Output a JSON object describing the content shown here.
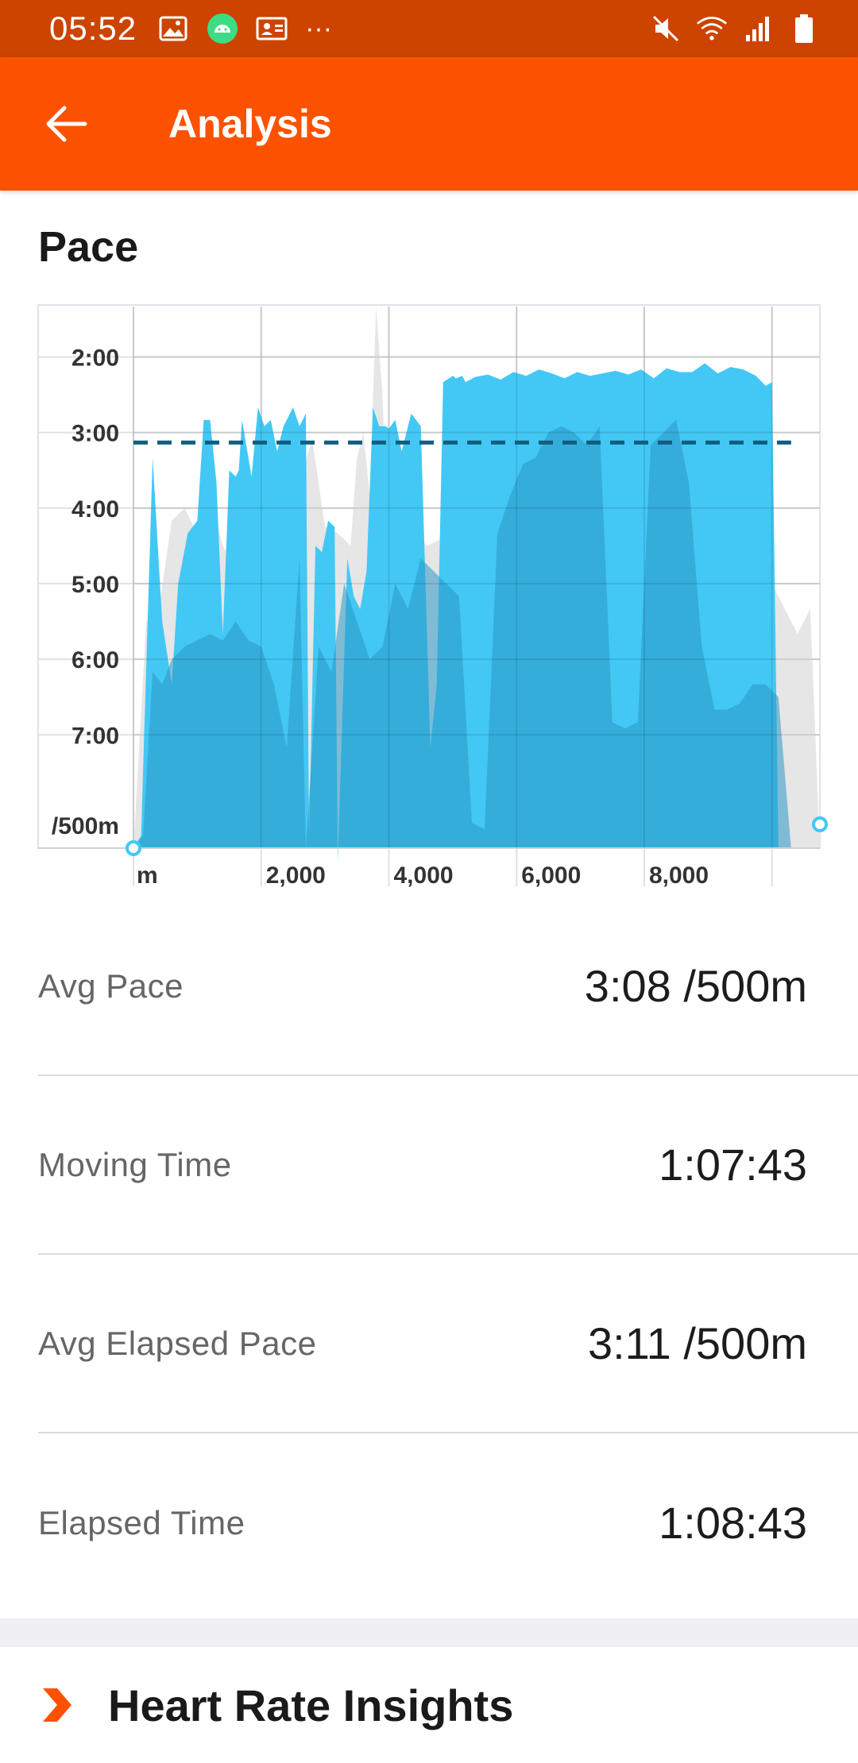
{
  "status_bar": {
    "time": "05:52",
    "left_icons": [
      "image-icon",
      "android-icon",
      "contact-card-icon",
      "more-dots-icon"
    ],
    "more": "···",
    "right_icons": [
      "mute-icon",
      "wifi-icon",
      "signal-icon",
      "battery-icon"
    ]
  },
  "app_bar": {
    "title": "Analysis",
    "back_icon": "arrow-left-icon"
  },
  "section": {
    "title": "Pace"
  },
  "chart_data": {
    "type": "area",
    "y_unit_label": "/500m",
    "x_unit_label": "m",
    "x_ticks": [
      "2,000",
      "4,000",
      "6,000",
      "8,000"
    ],
    "y_ticks": [
      "2:00",
      "3:00",
      "4:00",
      "5:00",
      "6:00",
      "7:00"
    ],
    "xlim": [
      0,
      10750
    ],
    "ylim_seconds": [
      80,
      510
    ],
    "y_inverted": true,
    "avg_pace_seconds": 188,
    "series": [
      {
        "color": "#43c8f5",
        "x": [
          0,
          120,
          300,
          450,
          600,
          700,
          850,
          1000,
          1100,
          1200,
          1300,
          1400,
          1500,
          1600,
          1650,
          1700,
          1850,
          1950,
          2050,
          2150,
          2250,
          2350,
          2500,
          2600,
          2700,
          2750,
          2850,
          2950,
          3050,
          3150,
          3200,
          3350,
          3450,
          3550,
          3650,
          3750,
          3850,
          3950,
          4000,
          4100,
          4200,
          4350,
          4500,
          4650,
          4750,
          4850,
          5000,
          5050,
          5150,
          5200,
          5350,
          5550,
          5750,
          5950,
          6150,
          6350,
          6550,
          6750,
          6950,
          7150,
          7350,
          7550,
          7750,
          7950,
          8150,
          8350,
          8550,
          8750,
          8950,
          9150,
          9350,
          9550,
          9750,
          9900,
          10000,
          10100,
          10200,
          10300,
          10350
        ],
        "seconds": [
          510,
          500,
          200,
          330,
          380,
          300,
          260,
          250,
          170,
          170,
          220,
          340,
          210,
          215,
          210,
          170,
          215,
          160,
          175,
          170,
          195,
          175,
          160,
          175,
          165,
          500,
          270,
          275,
          250,
          255,
          520,
          280,
          310,
          320,
          290,
          160,
          175,
          175,
          177,
          170,
          195,
          165,
          175,
          430,
          380,
          140,
          135,
          137,
          135,
          140,
          136,
          134,
          138,
          132,
          135,
          130,
          133,
          137,
          132,
          135,
          133,
          131,
          134,
          130,
          137,
          129,
          132,
          132,
          125,
          133,
          128,
          130,
          135,
          143,
          140,
          510,
          510,
          510,
          510
        ]
      },
      {
        "color": "#2a97c4",
        "x": [
          0,
          150,
          300,
          450,
          600,
          800,
          1000,
          1200,
          1400,
          1600,
          1800,
          2000,
          2200,
          2400,
          2600,
          2700,
          2900,
          3100,
          3300,
          3500,
          3700,
          3900,
          4100,
          4300,
          4500,
          4700,
          4900,
          5100,
          5300,
          5500,
          5700,
          5900,
          6100,
          6300,
          6500,
          6700,
          6900,
          7100,
          7300,
          7500,
          7700,
          7900,
          8100,
          8300,
          8500,
          8700,
          8900,
          9100,
          9300,
          9500,
          9700,
          9900,
          10100,
          10300,
          10350
        ],
        "seconds": [
          510,
          500,
          370,
          380,
          360,
          350,
          345,
          340,
          345,
          330,
          345,
          350,
          380,
          430,
          280,
          510,
          350,
          370,
          300,
          330,
          360,
          350,
          300,
          320,
          280,
          290,
          300,
          310,
          490,
          495,
          260,
          230,
          205,
          200,
          180,
          175,
          180,
          190,
          175,
          410,
          415,
          410,
          190,
          180,
          170,
          220,
          350,
          400,
          400,
          395,
          380,
          380,
          390,
          510,
          510
        ]
      },
      {
        "color": "#e6e6e6",
        "x": [
          0,
          200,
          400,
          600,
          800,
          1000,
          1200,
          1400,
          1600,
          1800,
          2000,
          2200,
          2400,
          2600,
          2800,
          3000,
          3200,
          3400,
          3500,
          3600,
          3700,
          3800,
          3900,
          4000,
          4200,
          4400,
          4600,
          4800,
          5000,
          5200,
          5400,
          5600,
          5800,
          6000,
          6200,
          6400,
          6600,
          6800,
          7000,
          7200,
          7400,
          7600,
          7800,
          8000,
          8200,
          8400,
          8600,
          8800,
          9000,
          9200,
          9400,
          9600,
          9800,
          10000,
          10200,
          10400,
          10600,
          10750
        ],
        "seconds": [
          510,
          330,
          320,
          250,
          240,
          260,
          230,
          270,
          290,
          260,
          245,
          250,
          230,
          220,
          185,
          255,
          260,
          270,
          200,
          180,
          230,
          80,
          150,
          300,
          280,
          260,
          270,
          265,
          235,
          230,
          300,
          320,
          350,
          300,
          280,
          260,
          250,
          270,
          300,
          320,
          310,
          300,
          280,
          270,
          260,
          250,
          230,
          270,
          300,
          310,
          320,
          300,
          280,
          300,
          320,
          340,
          320,
          510
        ]
      }
    ]
  },
  "stats": [
    {
      "label": "Avg Pace",
      "value": "3:08 /500m"
    },
    {
      "label": "Moving Time",
      "value": "1:07:43"
    },
    {
      "label": "Avg Elapsed Pace",
      "value": "3:11 /500m"
    },
    {
      "label": "Elapsed Time",
      "value": "1:08:43"
    }
  ],
  "insights": {
    "title": "Heart Rate Insights",
    "icon": "chevron-right-icon",
    "accent_color": "#fc5200"
  }
}
